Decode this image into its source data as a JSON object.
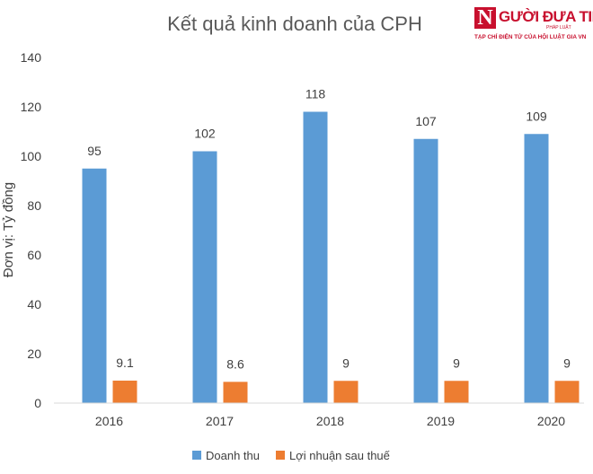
{
  "chart_data": {
    "type": "bar",
    "title": "Kết quả kinh doanh của CPH",
    "ylabel": "Đơn vị: Tỷ đồng",
    "xlabel": "",
    "categories": [
      "2016",
      "2017",
      "2018",
      "2019",
      "2020"
    ],
    "ylim": [
      0,
      140
    ],
    "yticks": [
      0,
      20,
      40,
      60,
      80,
      100,
      120,
      140
    ],
    "grid": false,
    "legend": "bottom",
    "series": [
      {
        "name": "Doanh thu",
        "values": [
          95,
          102,
          118,
          107,
          109
        ],
        "labels": [
          "95",
          "102",
          "118",
          "107",
          "109"
        ],
        "color": "#5b9bd5"
      },
      {
        "name": "Lợi nhuận sau thuế",
        "values": [
          9.1,
          8.6,
          9,
          9,
          9
        ],
        "labels": [
          "9.1",
          "8.6",
          "9",
          "9",
          "9"
        ],
        "color": "#ed7d31"
      }
    ]
  },
  "watermark": {
    "letter": "N",
    "name": "GƯỜI ĐƯA TIN",
    "sub": "PHÁP LUẬT",
    "tagline": "TẠP CHÍ ĐIỆN TỬ CỦA HỘI LUẬT GIA VN",
    "color": "#c8102e"
  }
}
